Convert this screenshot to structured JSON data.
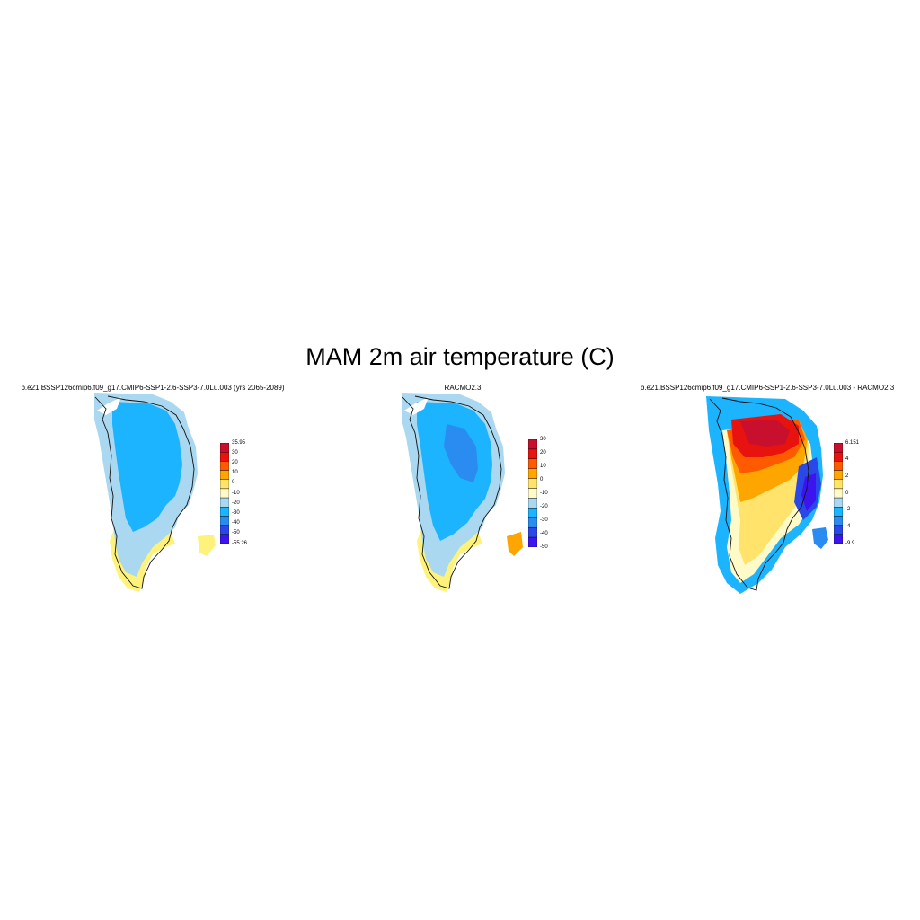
{
  "title": "MAM 2m air temperature (C)",
  "panels": [
    {
      "title": "b.e21.BSSP126cmip6.f09_g17.CMIP6-SSP1-2.6-SSP3-7.0Lu.003 (yrs 2065-2089)",
      "colorbar": {
        "labels": [
          "35.95",
          "30",
          "20",
          "10",
          "0",
          "-10",
          "-20",
          "-30",
          "-40",
          "-50",
          "-55.26"
        ],
        "colors": [
          "#c8102e",
          "#e8130e",
          "#ff5a00",
          "#ffa500",
          "#ffe36b",
          "#fffbc8",
          "#a9d8f0",
          "#1cb4ff",
          "#2a8cf0",
          "#2a48e8",
          "#3c14f0"
        ]
      }
    },
    {
      "title": "RACMO2.3",
      "colorbar": {
        "labels": [
          "30",
          "20",
          "10",
          "0",
          "-10",
          "-20",
          "-30",
          "-40",
          "-50"
        ],
        "colors": [
          "#c8102e",
          "#e8130e",
          "#ff5a00",
          "#ffa500",
          "#ffe36b",
          "#fffbc8",
          "#a9d8f0",
          "#1cb4ff",
          "#2a8cf0",
          "#2a48e8",
          "#3c14f0"
        ]
      }
    },
    {
      "title": "b.e21.BSSP126cmip6.f09_g17.CMIP6-SSP1-2.6-SSP3-7.0Lu.003 - RACMO2.3",
      "colorbar": {
        "labels": [
          "6.151",
          "4",
          "2",
          "0",
          "-2",
          "-4",
          "-9.9"
        ],
        "colors": [
          "#c8102e",
          "#e8130e",
          "#ff5a00",
          "#ffa500",
          "#ffe36b",
          "#fffbc8",
          "#a9d8f0",
          "#1cb4ff",
          "#2a8cf0",
          "#2a48e8",
          "#3c14f0"
        ]
      }
    }
  ]
}
